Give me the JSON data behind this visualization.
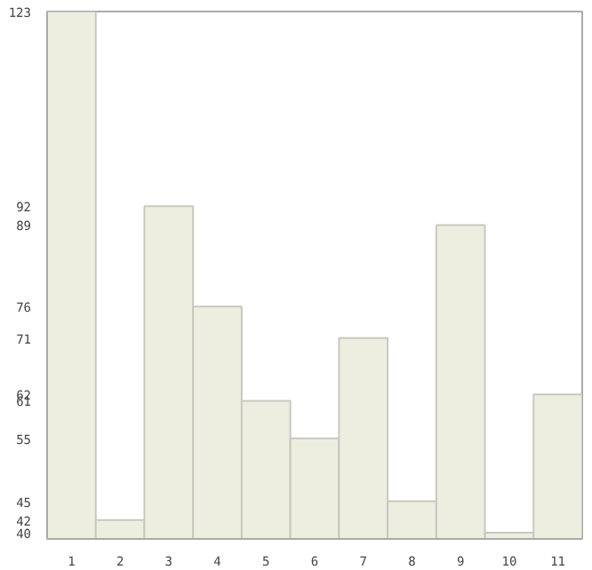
{
  "chart_data": {
    "type": "bar",
    "categories": [
      "1",
      "2",
      "3",
      "4",
      "5",
      "6",
      "7",
      "8",
      "9",
      "10",
      "11"
    ],
    "values": [
      123,
      42,
      92,
      76,
      61,
      55,
      71,
      45,
      89,
      40,
      62
    ],
    "color": "#eeeee0",
    "ylim": [
      39,
      123
    ],
    "yticks": [
      40,
      42,
      45,
      55,
      61,
      62,
      71,
      76,
      89,
      92,
      123
    ],
    "grid": false
  }
}
